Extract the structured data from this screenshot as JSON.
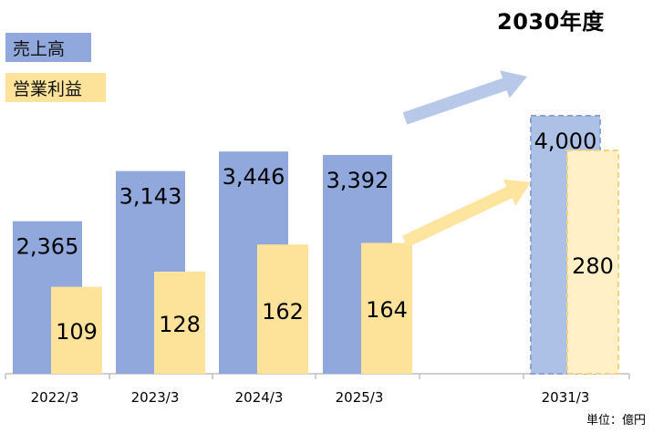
{
  "headline": "2030年度",
  "unit_label": "単位：億円",
  "colors": {
    "sales": "#91a8dc",
    "profit": "#fde29a",
    "sales_target": "#adc0e6",
    "profit_target": "#fff0c8",
    "arrow_sales": "#b7c8e8",
    "arrow_profit": "#fde5a0"
  },
  "chart_data": {
    "type": "bar",
    "categories": [
      "2022/3",
      "2023/3",
      "2024/3",
      "2025/3",
      "2031/3"
    ],
    "series": [
      {
        "name": "売上高",
        "values": [
          2365,
          3143,
          3446,
          3392,
          4000
        ],
        "labels": [
          "2,365",
          "3,143",
          "3,446",
          "3,392",
          "4,000"
        ]
      },
      {
        "name": "営業利益",
        "values": [
          109,
          128,
          162,
          164,
          280
        ],
        "labels": [
          "109",
          "128",
          "162",
          "164",
          "280"
        ]
      }
    ],
    "target_category": "2031/3",
    "legend": "top-left"
  }
}
